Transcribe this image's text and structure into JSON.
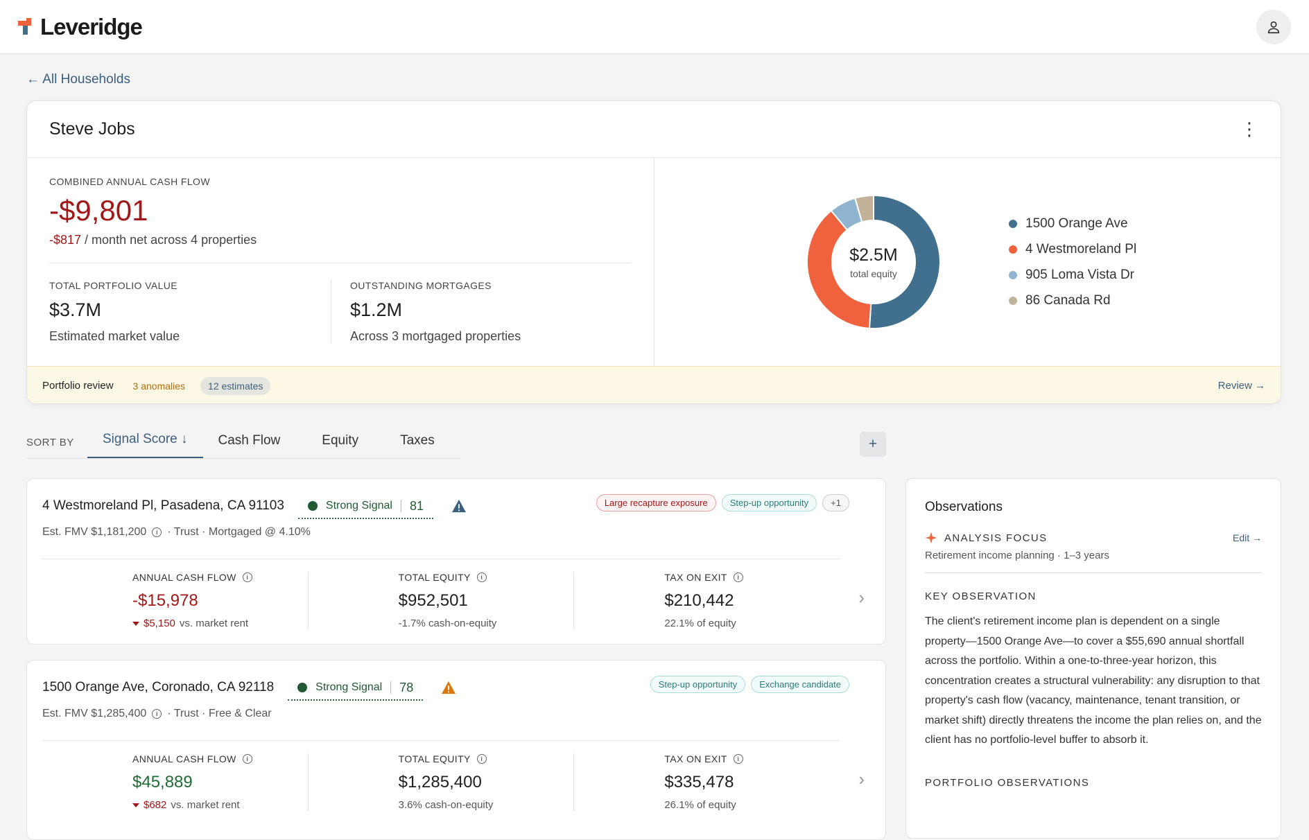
{
  "app": {
    "name": "Leveridge"
  },
  "nav": {
    "back_label": "← All Households"
  },
  "household": {
    "name": "Steve Jobs",
    "cash_flow_label": "COMBINED ANNUAL CASH FLOW",
    "cash_flow_value": "-$9,801",
    "monthly_value": "-$817",
    "monthly_suffix": " / month net across 4 properties",
    "portfolio_value_label": "TOTAL PORTFOLIO VALUE",
    "portfolio_value": "$3.7M",
    "portfolio_value_desc": "Estimated market value",
    "mortgages_label": "OUTSTANDING MORTGAGES",
    "mortgages_value": "$1.2M",
    "mortgages_desc": "Across 3 mortgaged properties"
  },
  "equity_chart": {
    "center_value": "$2.5M",
    "center_label": "total equity",
    "legend": [
      {
        "label": "1500 Orange Ave",
        "color": "#41708f"
      },
      {
        "label": "4 Westmoreland Pl",
        "color": "#f0623d"
      },
      {
        "label": "905 Loma Vista Dr",
        "color": "#8fb4d0"
      },
      {
        "label": "86 Canada Rd",
        "color": "#c2b29a"
      }
    ]
  },
  "chart_data": {
    "type": "pie",
    "title": "",
    "categories": [
      "1500 Orange Ave",
      "4 Westmoreland Pl",
      "905 Loma Vista Dr",
      "86 Canada Rd"
    ],
    "values": [
      51,
      38,
      6.5,
      4.5
    ],
    "colors": [
      "#41708f",
      "#f0623d",
      "#8fb4d0",
      "#c2b29a"
    ],
    "unit": "share of total equity (%)"
  },
  "review": {
    "label": "Portfolio review",
    "anomalies": "3 anomalies",
    "estimates": "12 estimates",
    "action": "Review →"
  },
  "sort": {
    "label": "SORT BY",
    "tabs": [
      "Signal Score ↓",
      "Cash Flow",
      "Equity",
      "Taxes"
    ],
    "add": "+"
  },
  "properties": [
    {
      "address": "4 Westmoreland Pl, Pasadena, CA 91103",
      "signal": "Strong Signal",
      "score": "81",
      "warning_color": "#3d5f7e",
      "fmv": "Est. FMV $1,181,200",
      "meta": "· Trust · Mortgaged @ 4.10%",
      "tags": [
        "Large recapture exposure",
        "Step-up opportunity",
        "+1"
      ],
      "cash_flow_label": "ANNUAL CASH FLOW",
      "cash_flow": "-$15,978",
      "rent_delta": "$5,150",
      "rent_suffix": "vs. market rent",
      "equity_label": "TOTAL EQUITY",
      "equity": "$952,501",
      "equity_sub": "-1.7% cash-on-equity",
      "tax_label": "TAX ON EXIT",
      "tax": "$210,442",
      "tax_sub": "22.1% of equity"
    },
    {
      "address": "1500 Orange Ave, Coronado, CA 92118",
      "signal": "Strong Signal",
      "score": "78",
      "warning_color": "#d9780d",
      "fmv": "Est. FMV $1,285,400",
      "meta": "· Trust · Free & Clear",
      "tags": [
        "Step-up opportunity",
        "Exchange candidate"
      ],
      "cash_flow_label": "ANNUAL CASH FLOW",
      "cash_flow": "$45,889",
      "rent_delta": "$682",
      "rent_suffix": "vs. market rent",
      "equity_label": "TOTAL EQUITY",
      "equity": "$1,285,400",
      "equity_sub": "3.6% cash-on-equity",
      "tax_label": "TAX ON EXIT",
      "tax": "$335,478",
      "tax_sub": "26.1% of equity"
    }
  ],
  "observations": {
    "title": "Observations",
    "focus_label": "ANALYSIS FOCUS",
    "focus_edit": "Edit →",
    "focus_sub": "Retirement income planning · 1–3 years",
    "key_label": "KEY OBSERVATION",
    "key_text": "The client's retirement income plan is dependent on a single property—1500 Orange Ave—to cover a $55,690 annual shortfall across the portfolio. Within a one-to-three-year horizon, this concentration creates a structural vulnerability: any disruption to that property's cash flow (vacancy, maintenance, tenant transition, or market shift) directly threatens the income the plan relies on, and the client has no portfolio-level buffer to absorb it.",
    "portfolio_label": "PORTFOLIO OBSERVATIONS"
  }
}
